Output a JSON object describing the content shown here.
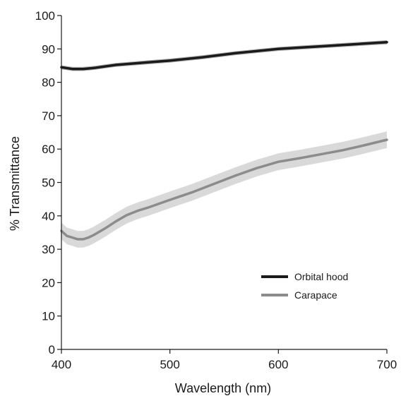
{
  "chart_data": {
    "type": "line",
    "xlabel": "Wavelength (nm)",
    "ylabel": "% Transmittance",
    "xlim": [
      400,
      700
    ],
    "ylim": [
      0,
      100
    ],
    "xticks": [
      400,
      500,
      600,
      700
    ],
    "yticks": [
      0,
      10,
      20,
      30,
      40,
      50,
      60,
      70,
      80,
      90,
      100
    ],
    "grid": false,
    "legend_position": "bottom-right",
    "series": [
      {
        "name": "Orbital hood",
        "color": "#1a1a1a",
        "x": [
          400,
          410,
          420,
          430,
          450,
          480,
          500,
          530,
          560,
          600,
          650,
          700
        ],
        "y": [
          84.5,
          84.0,
          84.0,
          84.3,
          85.2,
          86.0,
          86.5,
          87.5,
          88.7,
          90.0,
          91.0,
          92.0
        ],
        "band": 0.6
      },
      {
        "name": "Carapace",
        "color": "#8c8c8c",
        "band_color": "#d9d9d9",
        "x": [
          400,
          405,
          410,
          415,
          420,
          425,
          430,
          440,
          450,
          460,
          470,
          480,
          500,
          520,
          540,
          560,
          580,
          600,
          620,
          640,
          660,
          680,
          700
        ],
        "y": [
          35.5,
          34.0,
          33.5,
          33.0,
          33.0,
          33.5,
          34.3,
          36.2,
          38.3,
          40.2,
          41.5,
          42.5,
          44.8,
          47.0,
          49.5,
          52.0,
          54.3,
          56.2,
          57.3,
          58.5,
          59.7,
          61.2,
          62.8
        ],
        "band": 2.5
      }
    ]
  }
}
